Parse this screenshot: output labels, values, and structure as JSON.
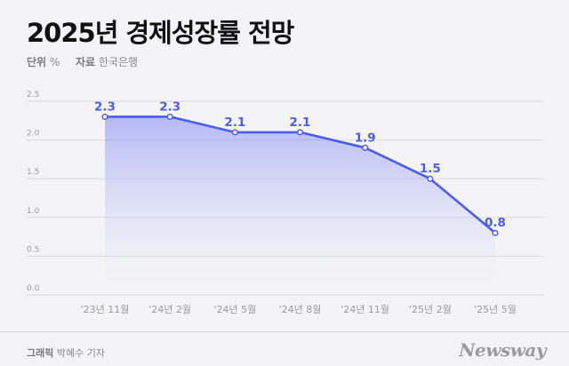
{
  "title": "2025년 경제성장률 전망",
  "meta": {
    "unit_label": "단위",
    "unit_value": "%",
    "source_label": "자료",
    "source_value": "한국은행"
  },
  "credit": {
    "label": "그래픽",
    "author": "박혜수 기자"
  },
  "logo": "Newsway",
  "colors": {
    "line": "#4d5cf0",
    "label": "#4d5cf0",
    "grid": "#d9d9df",
    "axis_text": "#9a9aa2"
  },
  "chart_data": {
    "type": "line",
    "title": "2025년 경제성장률 전망",
    "xlabel": "",
    "ylabel": "%",
    "categories": [
      "'23년 11월",
      "'24년 2월",
      "'24년 5월",
      "'24년 8월",
      "'24년 11월",
      "'25년 2월",
      "'25년 5월"
    ],
    "series": [
      {
        "name": "경제성장률 전망",
        "values": [
          2.3,
          2.3,
          2.1,
          2.1,
          1.9,
          1.5,
          0.8
        ]
      }
    ],
    "value_labels": [
      "2.3",
      "2.3",
      "2.1",
      "2.1",
      "1.9",
      "1.5",
      "0.8"
    ],
    "yticks": [
      0.0,
      0.5,
      1.0,
      1.5,
      2.0,
      2.5
    ],
    "ytick_labels": [
      "0.0",
      "0.5",
      "1.0",
      "1.5",
      "2.0",
      "2.5"
    ],
    "ylim": [
      0,
      2.5
    ],
    "grid": true,
    "legend": "none"
  }
}
